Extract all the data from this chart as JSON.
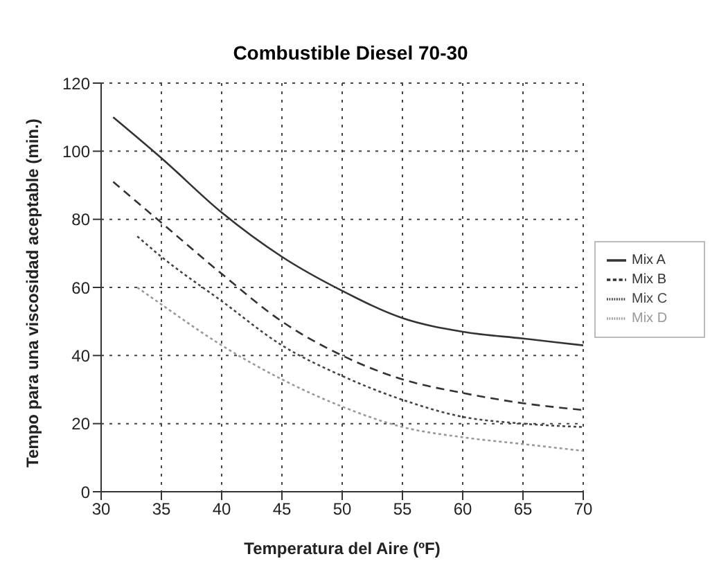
{
  "chart_data": {
    "type": "line",
    "title": "Combustible Diesel 70-30",
    "xlabel": "Temperatura del Aire (ºF)",
    "ylabel": "Tempo para una viscosidad aceptable (min.)",
    "xlim": [
      30,
      70
    ],
    "xticks": [
      30,
      35,
      40,
      45,
      50,
      55,
      60,
      65,
      70
    ],
    "ylim": [
      0,
      120
    ],
    "yticks": [
      0,
      20,
      40,
      60,
      80,
      100,
      120
    ],
    "grid": true,
    "legend": "right",
    "marker": "none",
    "series": [
      {
        "name": "Mix A",
        "color": "#333333",
        "line_style": "solid",
        "x": [
          31,
          35,
          40,
          45,
          50,
          55,
          60,
          65,
          70
        ],
        "values": [
          110,
          98,
          82,
          69,
          59,
          51,
          47,
          45,
          43
        ]
      },
      {
        "name": "Mix B",
        "color": "#333333",
        "line_style": "dashed",
        "x": [
          31,
          35,
          40,
          45,
          50,
          55,
          60,
          65,
          70
        ],
        "values": [
          91,
          79,
          64,
          50,
          40,
          33,
          29,
          26,
          24
        ]
      },
      {
        "name": "Mix C",
        "color": "#444444",
        "line_style": "dotted",
        "x": [
          33,
          35,
          40,
          45,
          50,
          55,
          60,
          65,
          70
        ],
        "values": [
          75,
          69,
          56,
          43,
          34,
          27,
          22,
          20,
          19
        ]
      },
      {
        "name": "Mix D",
        "color": "#999999",
        "line_style": "dotted",
        "x": [
          33,
          35,
          40,
          45,
          50,
          55,
          60,
          65,
          70
        ],
        "values": [
          60,
          55,
          43,
          33,
          25,
          19,
          16,
          14,
          12
        ]
      }
    ]
  }
}
